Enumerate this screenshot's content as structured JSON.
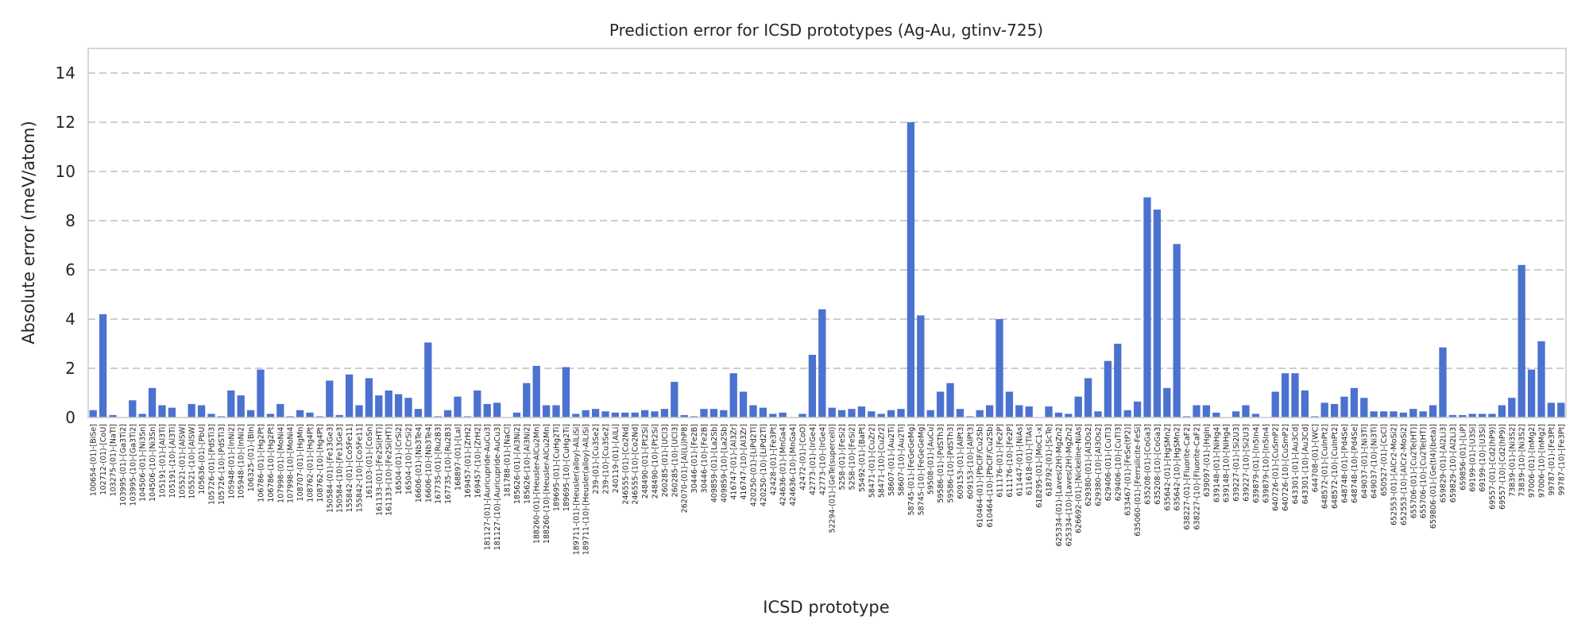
{
  "chart_data": {
    "type": "bar",
    "title": "Prediction error for ICSD prototypes (Ag-Au, gtinv-725)",
    "xlabel": "ICSD prototype",
    "ylabel": "Absolute error (meV/atom)",
    "ylim": [
      0,
      15
    ],
    "yticks": [
      0,
      2,
      4,
      6,
      8,
      10,
      12,
      14
    ],
    "grid": "horizontal dashed",
    "bar_color": "#4c72cf",
    "categories": [
      "100654-(01)-[BiSe]",
      "102712-(01)-[CoU]",
      "103275-(01)-[NaTl]",
      "103995-(01)-[Ga3Ti2]",
      "103995-(10)-[Ga3Ti2]",
      "104506-(01)-[Ni3Sn]",
      "104506-(10)-[Ni3Sn]",
      "105191-(01)-[Al3Ti]",
      "105191-(10)-[Al3Ti]",
      "105521-(01)-[AlSW]",
      "105521-(10)-[AlSW]",
      "105636-(01)-[PbU]",
      "105726-(01)-[PdSTi3]",
      "105726-(10)-[PdSTi3]",
      "105948-(01)-[InNi2]",
      "105948-(10)-[InNi2]",
      "106325-(01)-[BIn]",
      "106786-(01)-[Hg2Pt]",
      "106786-(10)-[Hg2Pt]",
      "107998-(01)-[MoNi4]",
      "107998-(10)-[MoNi4]",
      "108707-(01)-[HgMn]",
      "108762-(01)-[Hg4Pt]",
      "108762-(10)-[Hg4Pt]",
      "150584-(01)-[Fe13Ge3]",
      "150584-(10)-[Fe13Ge3]",
      "155842-(01)-[Co5Fe11]",
      "155842-(10)-[Co5Fe11]",
      "161103-(01)-[CoSn]",
      "161133-(01)-[Fe2Si(HT)]",
      "161133-(10)-[Fe2Si(HT)]",
      "16504-(01)-[CrSi2]",
      "16504-(10)-[CrSi2]",
      "16606-(01)-[Nb3Te4]",
      "16606-(10)-[Nb3Te4]",
      "167735-(01)-[Ru2B3]",
      "167735-(10)-[Ru2B3]",
      "168897-(01)-[LaI]",
      "169457-(01)-[ZrH2]",
      "169457-(10)-[ZrH2]",
      "181127-(01)-[Auricupride-AuCu3]",
      "181127-(10)-[Auricupride-AuCu3]",
      "181788-(01)-[NaCl]",
      "185626-(01)-[Al3Ni2]",
      "185626-(10)-[Al3Ni2]",
      "188260-(01)-[Heusler-AlCu2Mn]",
      "188260-(10)-[Heusler-AlCu2Mn]",
      "189695-(01)-[CuHg2Ti]",
      "189695-(10)-[CuHg2Ti]",
      "189711-(01)-[Heusler(alloy)-AlLiSi]",
      "189711-(10)-[Heusler(alloy)-AlLiSi]",
      "239-(01)-[Cu3Se2]",
      "239-(10)-[Cu3Se2]",
      "240119-(01)-[AlLi]",
      "246555-(01)-[Co2Nd]",
      "246555-(10)-[Co2Nd]",
      "248490-(01)-[Pt2Si]",
      "248490-(10)-[Pt2Si]",
      "260285-(01)-[UCl3]",
      "260285-(10)-[UCl3]",
      "262070-(01)-[Al(Li)hP8]",
      "30446-(01)-[Fe2B]",
      "30446-(10)-[Fe2B]",
      "409859-(01)-[La2Sb]",
      "409859-(10)-[La2Sb]",
      "416747-(01)-[Al3Zr]",
      "416747-(10)-[Al3Zr]",
      "420250-(01)-[LiPd2Tl]",
      "420250-(10)-[LiPd2Tl]",
      "42428-(01)-[Fe3Pt]",
      "424636-(01)-[MnGa4]",
      "424636-(10)-[MnGa4]",
      "42472-(01)-[CoO]",
      "42773-(01)-[IrGe4]",
      "42773-(10)-[IrGe4]",
      "52294-(01)-[GeTe(supercell)]",
      "5258-(01)-[FeSi2]",
      "5258-(10)-[FeSi2]",
      "55492-(01)-[BaPt]",
      "58471-(01)-[CuZr2]",
      "58471-(10)-[CuZr2]",
      "58607-(01)-[Au2Ti]",
      "58607-(10)-[Au2Ti]",
      "58745-(01)-[FeGeGeMg]",
      "58745-(10)-[FeGeGeMg]",
      "59508-(01)-[AuCu]",
      "59586-(01)-[PdSTh3]",
      "59586-(10)-[PdSTh3]",
      "609153-(01)-[AlPt3]",
      "609153-(10)-[AlPt3]",
      "610464-(01)-[PbClF/Cu2Sb]",
      "610464-(10)-[PbClF/Cu2Sb]",
      "611176-(01)-[Fe2P]",
      "611176-(10)-[Fe2P]",
      "611447-(01)-[NiAs]",
      "611618-(01)-[TlAs]",
      "618295-(01)-[MoC1-x]",
      "618792-(01)-[ScTe]",
      "625334-(01)-[Laves(2H)-MgZn2]",
      "625334-(10)-[Laves(2H)-MgZn2]",
      "626692-(01)-[Nickeline-NiAs]",
      "629380-(01)-[Al3Os2]",
      "629380-(10)-[Al3Os2]",
      "629406-(01)-[CuTl3]",
      "629406-(10)-[CuTl3]",
      "633467-(01)-[FeSe(tP2)]",
      "635060-(01)-[Ferrsilicite-FeSi]",
      "635208-(01)-[CoGa3]",
      "635208-(10)-[CoGa3]",
      "635642-(01)-[HgSMn2]",
      "635642-(10)-[HgSMn2]",
      "638227-(01)-[Fluorite-CaF2]",
      "638227-(10)-[Fluorite-CaF2]",
      "639097-(01)-[HgIn]",
      "639148-(01)-[NiHg4]",
      "639148-(10)-[NiHg4]",
      "639227-(01)-[Si2U3]",
      "639227-(10)-[Si2U3]",
      "639879-(01)-[In5In4]",
      "639879-(10)-[In5In4]",
      "640726-(01)-[CuSmP2]",
      "640726-(10)-[CuSmP2]",
      "643301-(01)-[Au3Cd]",
      "643301-(10)-[Au3Cd]",
      "644708-(01)-[WC]",
      "648572-(01)-[CuInPt2]",
      "648572-(10)-[CuInPt2]",
      "648748-(01)-[Pd4Se]",
      "648748-(10)-[Pd4Se]",
      "649037-(01)-[Ni3Ti]",
      "649037-(10)-[Ni3Ti]",
      "650527-(01)-[CsCl]",
      "652553-(01)-[AlCr2-MoSi2]",
      "652553-(10)-[AlCr2-MoSi2]",
      "655706-(01)-[Cu2Te(HT)]",
      "655706-(10)-[Cu2Te(HT)]",
      "659806-(01)-[Ge(tI4)(beta)]",
      "659829-(01)-[Al2Li3]",
      "659829-(10)-[Al2Li3]",
      "659856-(01)-[LiP]",
      "69199-(01)-[U3Si]",
      "69199-(10)-[U3Si]",
      "69557-(01)-[Cd2(hP9)]",
      "69557-(10)-[Cd2(hP9)]",
      "73839-(01)-[Ni3S2]",
      "73839-(10)-[Ni3S2]",
      "97006-(01)-[InMg2]",
      "97006-(10)-[InMg2]",
      "99787-(01)-[Fe3Pt]",
      "99787-(10)-[Fe3Pt]"
    ],
    "values": [
      0.3,
      4.2,
      0.1,
      0.0,
      0.7,
      0.15,
      1.2,
      0.5,
      0.4,
      0.0,
      0.55,
      0.5,
      0.15,
      0.05,
      1.1,
      0.9,
      0.3,
      1.95,
      0.15,
      0.55,
      0.05,
      0.3,
      0.2,
      0.05,
      1.5,
      0.1,
      1.75,
      0.5,
      1.6,
      0.9,
      1.1,
      0.95,
      0.8,
      0.35,
      3.05,
      0.05,
      0.3,
      0.85,
      0.05,
      1.1,
      0.55,
      0.6,
      0.0,
      0.2,
      1.4,
      2.1,
      0.5,
      0.5,
      2.05,
      0.15,
      0.3,
      0.35,
      0.25,
      0.2,
      0.2,
      0.2,
      0.3,
      0.25,
      0.35,
      1.45,
      0.1,
      0.05,
      0.35,
      0.35,
      0.3,
      1.8,
      1.05,
      0.5,
      0.4,
      0.15,
      0.2,
      0.0,
      0.15,
      2.55,
      4.4,
      0.4,
      0.3,
      0.35,
      0.45,
      0.25,
      0.15,
      0.3,
      0.35,
      12.0,
      4.15,
      0.3,
      1.05,
      1.4,
      0.35,
      0.05,
      0.3,
      0.5,
      4.0,
      1.05,
      0.5,
      0.45,
      0.0,
      0.45,
      0.2,
      0.15,
      0.85,
      1.6,
      0.25,
      2.3,
      3.0,
      0.3,
      0.65,
      8.95,
      8.45,
      1.2,
      7.05,
      0.05,
      0.5,
      0.5,
      0.2,
      0.0,
      0.25,
      0.5,
      0.15,
      0.0,
      1.05,
      1.8,
      1.8,
      1.1,
      0.05,
      0.6,
      0.55,
      0.85,
      1.2,
      0.8,
      0.25,
      0.25,
      0.25,
      0.2,
      0.35,
      0.25,
      0.5,
      2.85,
      0.1,
      0.1,
      0.15,
      0.15,
      0.15,
      0.5,
      0.8,
      6.2,
      1.95,
      3.1,
      0.6,
      0.6
    ]
  }
}
